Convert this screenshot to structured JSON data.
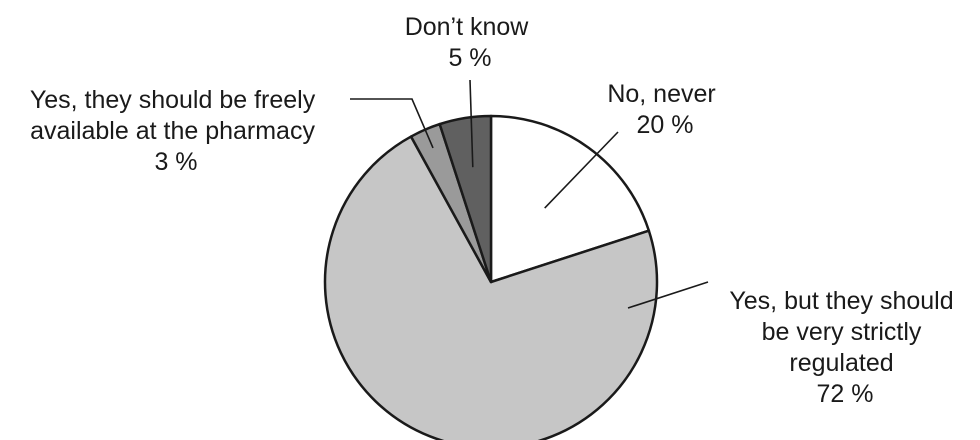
{
  "chart_data": {
    "type": "pie",
    "title": "",
    "start": "12 o'clock",
    "direction": "clockwise",
    "slices": [
      {
        "name": "No, never",
        "value": 20,
        "value_label": "20 %",
        "label_lines": [
          "No, never"
        ],
        "color": "#ffffff"
      },
      {
        "name": "Yes, but they should be very strictly regulated",
        "value": 72,
        "value_label": "72 %",
        "label_lines": [
          "Yes, but they should",
          "be very strictly",
          "regulated"
        ],
        "color": "#c6c6c6"
      },
      {
        "name": "Yes, they should be freely available at the pharmacy",
        "value": 3,
        "value_label": "3 %",
        "label_lines": [
          "Yes, they should be freely",
          "available at the pharmacy"
        ],
        "color": "#9a9a9a"
      },
      {
        "name": "Don’t know",
        "value": 5,
        "value_label": "5 %",
        "label_lines": [
          "Don’t know"
        ],
        "color": "#606060"
      }
    ]
  }
}
